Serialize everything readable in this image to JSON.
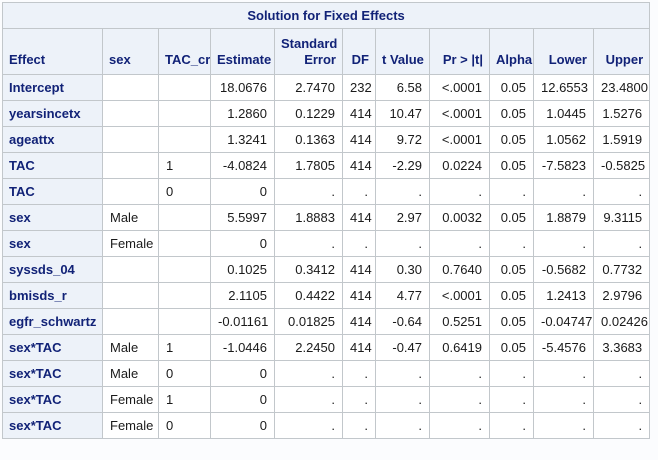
{
  "table": {
    "title": "Solution for Fixed Effects",
    "columns": [
      {
        "id": "effect",
        "label": "Effect"
      },
      {
        "id": "sex",
        "label": "sex"
      },
      {
        "id": "tac_cr",
        "label": "TAC_cr"
      },
      {
        "id": "estimate",
        "label": "Estimate"
      },
      {
        "id": "std_error",
        "label": "Standard\nError"
      },
      {
        "id": "df",
        "label": "DF"
      },
      {
        "id": "t_value",
        "label": "t Value"
      },
      {
        "id": "pr_gt_t",
        "label": "Pr > |t|"
      },
      {
        "id": "alpha",
        "label": "Alpha"
      },
      {
        "id": "lower",
        "label": "Lower"
      },
      {
        "id": "upper",
        "label": "Upper"
      }
    ],
    "rows": [
      [
        "Intercept",
        "",
        "",
        "18.0676",
        "2.7470",
        "232",
        "6.58",
        "<.0001",
        "0.05",
        "12.6553",
        "23.4800"
      ],
      [
        "yearsincetx",
        "",
        "",
        "1.2860",
        "0.1229",
        "414",
        "10.47",
        "<.0001",
        "0.05",
        "1.0445",
        "1.5276"
      ],
      [
        "ageattx",
        "",
        "",
        "1.3241",
        "0.1363",
        "414",
        "9.72",
        "<.0001",
        "0.05",
        "1.0562",
        "1.5919"
      ],
      [
        "TAC",
        "",
        "1",
        "-4.0824",
        "1.7805",
        "414",
        "-2.29",
        "0.0224",
        "0.05",
        "-7.5823",
        "-0.5825"
      ],
      [
        "TAC",
        "",
        "0",
        "0",
        ".",
        ".",
        ".",
        ".",
        ".",
        ".",
        "."
      ],
      [
        "sex",
        "Male",
        "",
        "5.5997",
        "1.8883",
        "414",
        "2.97",
        "0.0032",
        "0.05",
        "1.8879",
        "9.3115"
      ],
      [
        "sex",
        "Female",
        "",
        "0",
        ".",
        ".",
        ".",
        ".",
        ".",
        ".",
        "."
      ],
      [
        "syssds_04",
        "",
        "",
        "0.1025",
        "0.3412",
        "414",
        "0.30",
        "0.7640",
        "0.05",
        "-0.5682",
        "0.7732"
      ],
      [
        "bmisds_r",
        "",
        "",
        "2.1105",
        "0.4422",
        "414",
        "4.77",
        "<.0001",
        "0.05",
        "1.2413",
        "2.9796"
      ],
      [
        "egfr_schwartz",
        "",
        "",
        "-0.01161",
        "0.01825",
        "414",
        "-0.64",
        "0.5251",
        "0.05",
        "-0.04747",
        "0.02426"
      ],
      [
        "sex*TAC",
        "Male",
        "1",
        "-1.0446",
        "2.2450",
        "414",
        "-0.47",
        "0.6419",
        "0.05",
        "-5.4576",
        "3.3683"
      ],
      [
        "sex*TAC",
        "Male",
        "0",
        "0",
        ".",
        ".",
        ".",
        ".",
        ".",
        ".",
        "."
      ],
      [
        "sex*TAC",
        "Female",
        "1",
        "0",
        ".",
        ".",
        ".",
        ".",
        ".",
        ".",
        "."
      ],
      [
        "sex*TAC",
        "Female",
        "0",
        "0",
        ".",
        ".",
        ".",
        ".",
        ".",
        ".",
        "."
      ]
    ]
  },
  "colors": {
    "header_background": "#EDF2F9",
    "header_text": "#112277",
    "data_text": "#1A1A1A",
    "grid_border": "#C2C7CB",
    "outer_border": "#AAB0B7",
    "page_background": "#FBFCFE"
  }
}
